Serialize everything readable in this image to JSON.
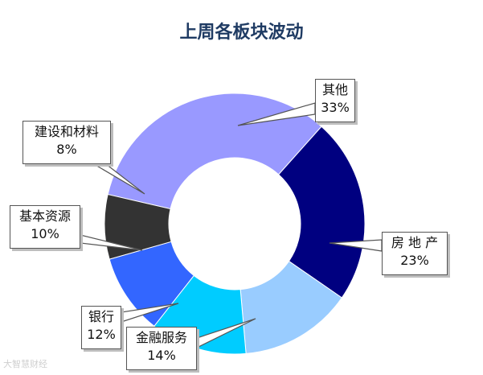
{
  "chart_data": {
    "type": "pie",
    "variant": "donut",
    "title": "上周各板块波动",
    "slices": [
      {
        "label": "其他",
        "value": 33,
        "display": "33%",
        "color": "#9999ff"
      },
      {
        "label": "房 地 产",
        "value": 23,
        "display": "23%",
        "color": "#000080"
      },
      {
        "label": "金融服务",
        "value": 14,
        "display": "14%",
        "color": "#99ccff"
      },
      {
        "label": "银行",
        "value": 12,
        "display": "12%",
        "color": "#00ccff"
      },
      {
        "label": "基本资源",
        "value": 10,
        "display": "10%",
        "color": "#3366ff"
      },
      {
        "label": "建设和材料",
        "value": 8,
        "display": "8%",
        "color": "#333333"
      }
    ],
    "legend": "none",
    "labels": "callouts"
  },
  "watermark": "大智慧财经"
}
